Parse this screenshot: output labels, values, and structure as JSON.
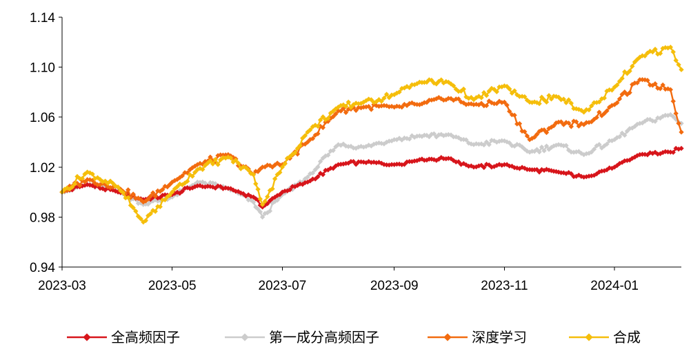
{
  "chart_data": {
    "type": "line",
    "title": "",
    "xlabel": "",
    "ylabel": "",
    "ylim": [
      0.94,
      1.14
    ],
    "yticks": [
      "0.94",
      "0.98",
      "1.02",
      "1.06",
      "1.10",
      "1.14"
    ],
    "xlim": [
      "2023-03-01",
      "2024-02-07"
    ],
    "xticks": [
      "2023-03",
      "2023-05",
      "2023-07",
      "2023-09",
      "2023-11",
      "2024-01"
    ],
    "grid": false,
    "legend_position": "bottom",
    "x": [
      "2023-03-01",
      "2023-03-15",
      "2023-04-01",
      "2023-04-15",
      "2023-05-01",
      "2023-05-15",
      "2023-06-01",
      "2023-06-15",
      "2023-06-20",
      "2023-07-01",
      "2023-07-15",
      "2023-08-01",
      "2023-08-15",
      "2023-09-01",
      "2023-09-15",
      "2023-10-01",
      "2023-10-15",
      "2023-11-01",
      "2023-11-15",
      "2023-12-01",
      "2023-12-15",
      "2024-01-01",
      "2024-01-15",
      "2024-02-01",
      "2024-02-07"
    ],
    "series": [
      {
        "name": "全高频因子",
        "color": "#d7151b",
        "values": [
          1.0,
          1.006,
          1.0,
          0.994,
          0.998,
          1.005,
          1.003,
          0.996,
          0.988,
          1.0,
          1.008,
          1.022,
          1.024,
          1.022,
          1.026,
          1.027,
          1.02,
          1.022,
          1.018,
          1.016,
          1.012,
          1.02,
          1.03,
          1.032,
          1.035
        ]
      },
      {
        "name": "第一成分高频因子",
        "color": "#cccccc",
        "values": [
          1.0,
          1.006,
          1.001,
          0.99,
          0.996,
          1.008,
          1.003,
          0.992,
          0.98,
          0.998,
          1.012,
          1.038,
          1.036,
          1.042,
          1.045,
          1.046,
          1.038,
          1.041,
          1.032,
          1.038,
          1.03,
          1.042,
          1.055,
          1.062,
          1.055
        ]
      },
      {
        "name": "深度学习",
        "color": "#f26b0f",
        "values": [
          1.0,
          1.01,
          1.004,
          0.992,
          1.008,
          1.022,
          1.03,
          1.014,
          1.02,
          1.022,
          1.04,
          1.065,
          1.068,
          1.068,
          1.07,
          1.075,
          1.07,
          1.072,
          1.042,
          1.056,
          1.054,
          1.07,
          1.09,
          1.082,
          1.048
        ]
      },
      {
        "name": "合成",
        "color": "#f5be0b",
        "values": [
          1.0,
          1.016,
          1.004,
          0.976,
          1.0,
          1.018,
          1.028,
          1.014,
          0.99,
          1.02,
          1.048,
          1.068,
          1.072,
          1.078,
          1.088,
          1.088,
          1.074,
          1.085,
          1.072,
          1.076,
          1.064,
          1.084,
          1.108,
          1.116,
          1.098
        ]
      }
    ]
  }
}
